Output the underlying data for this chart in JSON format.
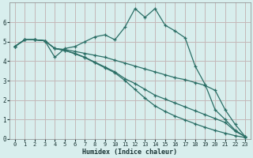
{
  "xlabel": "Humidex (Indice chaleur)",
  "background_color": "#d8eeed",
  "plot_bg_color": "#d8eeed",
  "grid_color": "#c4b8b8",
  "line_color": "#2a6e65",
  "xlim": [
    -0.5,
    23.5
  ],
  "ylim": [
    0,
    7
  ],
  "xticks": [
    0,
    1,
    2,
    3,
    4,
    5,
    6,
    7,
    8,
    9,
    10,
    11,
    12,
    13,
    14,
    15,
    16,
    17,
    18,
    19,
    20,
    21,
    22,
    23
  ],
  "yticks": [
    0,
    1,
    2,
    3,
    4,
    5,
    6
  ],
  "curve1_x": [
    0,
    1,
    2,
    3,
    4,
    5,
    6,
    7,
    8,
    9,
    10,
    11,
    12,
    13,
    14,
    15,
    16,
    17,
    18,
    19,
    20,
    21,
    22,
    23
  ],
  "curve1_y": [
    4.75,
    5.1,
    5.1,
    5.05,
    4.2,
    4.65,
    4.75,
    5.0,
    5.25,
    5.35,
    5.1,
    5.75,
    6.7,
    6.25,
    6.7,
    5.85,
    5.55,
    5.2,
    3.75,
    2.8,
    1.5,
    1.0,
    0.45,
    0.12
  ],
  "curve2_x": [
    0,
    1,
    2,
    3,
    4,
    5,
    6,
    7,
    8,
    9,
    10,
    11,
    12,
    13,
    14,
    15,
    16,
    17,
    18,
    19,
    20,
    21,
    22,
    23
  ],
  "curve2_y": [
    4.75,
    5.1,
    5.1,
    5.05,
    4.65,
    4.6,
    4.5,
    4.4,
    4.3,
    4.2,
    4.05,
    3.9,
    3.75,
    3.6,
    3.45,
    3.3,
    3.15,
    3.05,
    2.9,
    2.75,
    2.5,
    1.5,
    0.75,
    0.12
  ],
  "curve3_x": [
    0,
    1,
    2,
    3,
    4,
    5,
    6,
    7,
    8,
    9,
    10,
    11,
    12,
    13,
    14,
    15,
    16,
    17,
    18,
    19,
    20,
    21,
    22,
    23
  ],
  "curve3_y": [
    4.75,
    5.1,
    5.1,
    5.05,
    4.65,
    4.55,
    4.4,
    4.2,
    3.95,
    3.7,
    3.45,
    3.1,
    2.85,
    2.55,
    2.25,
    2.05,
    1.85,
    1.65,
    1.45,
    1.25,
    1.05,
    0.85,
    0.4,
    0.12
  ],
  "curve4_x": [
    0,
    1,
    2,
    3,
    4,
    5,
    6,
    7,
    8,
    9,
    10,
    11,
    12,
    13,
    14,
    15,
    16,
    17,
    18,
    19,
    20,
    21,
    22,
    23
  ],
  "curve4_y": [
    4.75,
    5.1,
    5.1,
    5.05,
    4.65,
    4.55,
    4.38,
    4.18,
    3.92,
    3.66,
    3.4,
    3.0,
    2.55,
    2.1,
    1.7,
    1.42,
    1.18,
    0.98,
    0.78,
    0.6,
    0.44,
    0.3,
    0.17,
    0.08
  ]
}
